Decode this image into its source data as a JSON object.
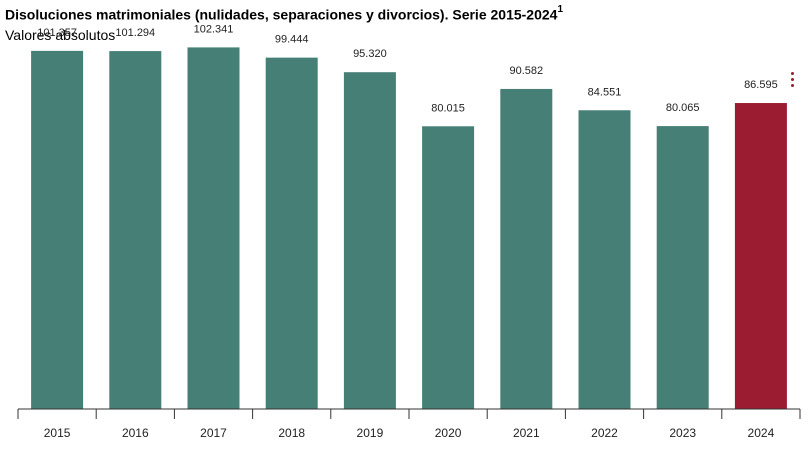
{
  "chart_data": {
    "type": "bar",
    "title": "Disoluciones matrimoniales (nulidades, separaciones y divorcios). Serie 2015-2024",
    "title_footnote": "1",
    "subtitle": "Valores absolutos",
    "categories": [
      "2015",
      "2016",
      "2017",
      "2018",
      "2019",
      "2020",
      "2021",
      "2022",
      "2023",
      "2024"
    ],
    "values": [
      101357,
      101294,
      102341,
      99444,
      95320,
      80015,
      90582,
      84551,
      80065,
      86595
    ],
    "value_labels": [
      "101.357",
      "101.294",
      "102.341",
      "99.444",
      "95.320",
      "80.015",
      "90.582",
      "84.551",
      "80.065",
      "86.595"
    ],
    "colors": {
      "default_bar": "#467f76",
      "highlight_bar": "#9b1b30",
      "axis": "#333333",
      "menu_icon": "#9b1b30"
    },
    "highlight_category": "2024",
    "ylim": [
      0,
      105000
    ],
    "grid": false,
    "legend": "none"
  },
  "menu": {
    "icon": "vertical-dots-menu-icon"
  }
}
